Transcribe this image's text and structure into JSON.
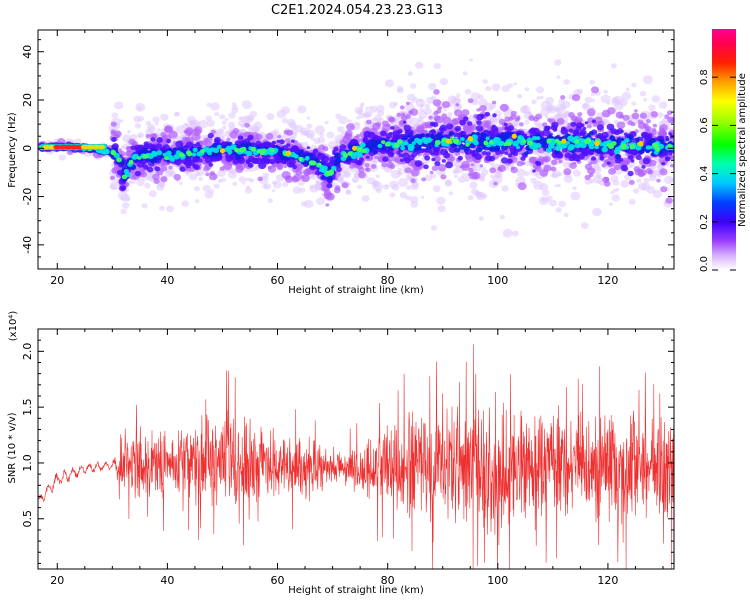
{
  "title": "C2E1.2024.054.23.23.G13",
  "chart_data": [
    {
      "type": "heatmap",
      "xlabel": "Height of straight line (km)",
      "ylabel": "Frequency (Hz)",
      "xlim": [
        16.5,
        132
      ],
      "ylim": [
        -50,
        49
      ],
      "x_ticks": [
        20,
        40,
        60,
        80,
        100,
        120
      ],
      "y_ticks": [
        40,
        20,
        0,
        -20,
        -40
      ],
      "ridge": {
        "x": [
          17,
          20,
          24,
          28,
          30.5,
          31.5,
          32.3,
          33,
          34,
          36,
          40,
          45,
          50,
          55,
          60,
          63,
          65,
          67,
          68.5,
          69.5,
          70.5,
          72,
          75,
          78,
          82,
          86,
          90,
          95,
          100,
          105,
          110,
          115,
          120,
          125,
          131.5
        ],
        "y": [
          0.5,
          0.5,
          0.5,
          -1,
          -2,
          -6,
          -13,
          -7,
          -4,
          -3,
          -3,
          -2,
          -0.5,
          -1,
          -1.5,
          -3,
          -4.5,
          -6,
          -9,
          -11,
          -6,
          -3,
          -1,
          1.5,
          2,
          2.5,
          3,
          2.5,
          3,
          2.5,
          2,
          2.5,
          1.5,
          1,
          0.5
        ]
      },
      "colorbar": {
        "label": "Normalized spectral amplitude",
        "ticks": [
          "0.0",
          "0.2",
          "0.4",
          "0.6",
          "0.8"
        ],
        "range": [
          0,
          1
        ],
        "colors": [
          "#ffffff",
          "#c080ff",
          "#8000ff",
          "#0000ff",
          "#00ffff",
          "#00ff00",
          "#ffff00",
          "#ff8000",
          "#ff0000",
          "#ff0080"
        ]
      }
    },
    {
      "type": "line",
      "xlabel": "Height of straight line (km)",
      "ylabel": "SNR (10 * v/v)",
      "y_scale_label": "(x10⁴)",
      "xlim": [
        16.5,
        132
      ],
      "ylim": [
        0.05,
        2.2
      ],
      "x_ticks": [
        20,
        40,
        60,
        80,
        100,
        120
      ],
      "y_ticks": [
        "0.5",
        "1.0",
        "1.5",
        "2.0"
      ],
      "y_tick_values": [
        0.5,
        1.0,
        1.5,
        2.0
      ],
      "color": "#ee3030",
      "envelope": {
        "x": [
          16.5,
          20,
          25,
          30,
          32,
          35,
          40,
          45,
          50,
          55,
          60,
          65,
          70,
          75,
          80,
          85,
          90,
          95,
          100,
          105,
          110,
          115,
          120,
          125,
          130,
          132
        ],
        "mean": [
          0.65,
          0.85,
          0.95,
          0.98,
          0.95,
          1.0,
          0.98,
          1.0,
          1.05,
          1.0,
          0.98,
          0.95,
          0.95,
          0.95,
          0.98,
          1.0,
          0.95,
          0.98,
          0.95,
          0.98,
          0.95,
          0.95,
          0.95,
          0.95,
          0.98,
          0.95
        ],
        "amplitude": [
          0.05,
          0.08,
          0.05,
          0.05,
          0.25,
          0.35,
          0.35,
          0.4,
          0.5,
          0.45,
          0.35,
          0.35,
          0.15,
          0.25,
          0.5,
          0.6,
          0.6,
          0.7,
          0.75,
          0.65,
          0.6,
          0.55,
          0.55,
          0.6,
          0.55,
          0.55
        ]
      }
    }
  ]
}
